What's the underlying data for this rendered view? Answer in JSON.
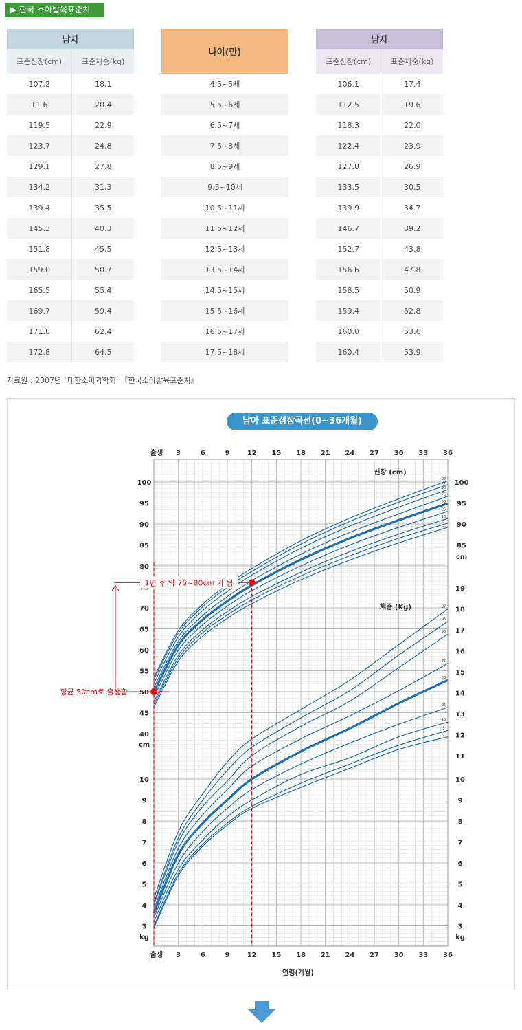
{
  "badge": "▶ 한국 소아발육표준치",
  "left_table": {
    "title": "남자",
    "col1": "표준신장(cm)",
    "col2": "표준체중(kg)",
    "rows": [
      [
        "107.2",
        "18.1"
      ],
      [
        "11.6",
        "20.4"
      ],
      [
        "119.5",
        "22.9"
      ],
      [
        "123.7",
        "24.8"
      ],
      [
        "129.1",
        "27.8"
      ],
      [
        "134.2",
        "31.3"
      ],
      [
        "139.4",
        "35.5"
      ],
      [
        "145.3",
        "40.3"
      ],
      [
        "151.8",
        "45.5"
      ],
      [
        "159.0",
        "50.7"
      ],
      [
        "165.5",
        "55.4"
      ],
      [
        "169.7",
        "59.4"
      ],
      [
        "171.8",
        "62.4"
      ],
      [
        "172.8",
        "64.5"
      ]
    ]
  },
  "mid_table": {
    "title": "나이(만)",
    "rows": [
      "4.5~5세",
      "5.5~6세",
      "6.5~7세",
      "7.5~8세",
      "8.5~9세",
      "9.5~10세",
      "10.5~11세",
      "11.5~12세",
      "12.5~13세",
      "13.5~14세",
      "14.5~15세",
      "15.5~16세",
      "16.5~17세",
      "17.5~18세"
    ]
  },
  "right_table": {
    "title": "남자",
    "col1": "표준신장(cm)",
    "col2": "표준체중(kg)",
    "rows": [
      [
        "106.1",
        "17.4"
      ],
      [
        "112.5",
        "19.6"
      ],
      [
        "118.3",
        "22.0"
      ],
      [
        "122.4",
        "23.9"
      ],
      [
        "127.8",
        "26.9"
      ],
      [
        "133.5",
        "30.5"
      ],
      [
        "139.9",
        "34.7"
      ],
      [
        "146.7",
        "39.2"
      ],
      [
        "152.7",
        "43.8"
      ],
      [
        "156.6",
        "47.8"
      ],
      [
        "158.5",
        "50.9"
      ],
      [
        "159.4",
        "52.8"
      ],
      [
        "160.0",
        "53.6"
      ],
      [
        "160.4",
        "53.9"
      ]
    ]
  },
  "source": "자료원 : 2007년 `대한소아과학회'   『한국소아발육표준치』",
  "chart_title": "남아 표준성장곡선(0~36개월)",
  "chart_data": {
    "type": "line",
    "title": "남아 표준성장곡선(0~36개월)",
    "xlabel": "연령(개월)",
    "x_ticks": [
      "출생",
      "3",
      "6",
      "9",
      "12",
      "15",
      "18",
      "21",
      "24",
      "27",
      "30",
      "33",
      "36"
    ],
    "height_panel": {
      "label": "신장 (cm)",
      "unit": "cm",
      "left_ticks": [
        "100",
        "95",
        "90",
        "85",
        "80",
        "75",
        "70",
        "65",
        "60",
        "55",
        "50",
        "45",
        "40"
      ],
      "right_ticks": [
        "100",
        "95",
        "90",
        "85"
      ],
      "ylim": [
        40,
        104
      ],
      "percentiles": [
        "97",
        "95",
        "90",
        "75",
        "50",
        "25",
        "10",
        "5",
        "3"
      ],
      "series": [
        {
          "name": "97",
          "x": [
            0,
            3,
            6,
            9,
            12,
            18,
            24,
            30,
            36
          ],
          "values": [
            53.4,
            64.6,
            70.9,
            75.5,
            79.4,
            86.0,
            91.4,
            96.0,
            100.3
          ]
        },
        {
          "name": "95",
          "x": [
            0,
            3,
            6,
            9,
            12,
            18,
            24,
            30,
            36
          ],
          "values": [
            52.9,
            64.0,
            70.3,
            74.9,
            78.7,
            85.2,
            90.6,
            95.2,
            99.4
          ]
        },
        {
          "name": "90",
          "x": [
            0,
            3,
            6,
            9,
            12,
            18,
            24,
            30,
            36
          ],
          "values": [
            52.0,
            63.1,
            69.4,
            73.9,
            77.8,
            84.2,
            89.5,
            94.0,
            98.2
          ]
        },
        {
          "name": "75",
          "x": [
            0,
            3,
            6,
            9,
            12,
            18,
            24,
            30,
            36
          ],
          "values": [
            51.0,
            62.0,
            68.2,
            72.7,
            76.5,
            82.8,
            88.0,
            92.4,
            96.6
          ]
        },
        {
          "name": "50",
          "x": [
            0,
            3,
            6,
            9,
            12,
            18,
            24,
            30,
            36
          ],
          "values": [
            49.9,
            61.1,
            67.2,
            71.6,
            75.4,
            81.5,
            86.6,
            90.9,
            94.9
          ]
        },
        {
          "name": "25",
          "x": [
            0,
            3,
            6,
            9,
            12,
            18,
            24,
            30,
            36
          ],
          "values": [
            48.7,
            59.9,
            66.0,
            70.4,
            74.1,
            80.0,
            85.0,
            89.2,
            93.0
          ]
        },
        {
          "name": "10",
          "x": [
            0,
            3,
            6,
            9,
            12,
            18,
            24,
            30,
            36
          ],
          "values": [
            47.6,
            58.7,
            64.8,
            69.1,
            72.7,
            78.5,
            83.4,
            87.6,
            91.3
          ]
        },
        {
          "name": "5",
          "x": [
            0,
            3,
            6,
            9,
            12,
            18,
            24,
            30,
            36
          ],
          "values": [
            47.0,
            58.0,
            64.1,
            68.3,
            71.9,
            77.6,
            82.4,
            86.6,
            90.2
          ]
        },
        {
          "name": "3",
          "x": [
            0,
            3,
            6,
            9,
            12,
            18,
            24,
            30,
            36
          ],
          "values": [
            46.3,
            57.3,
            63.3,
            67.5,
            71.0,
            76.7,
            81.4,
            85.5,
            89.2
          ]
        }
      ]
    },
    "weight_panel": {
      "label": "체중 (Kg)",
      "unit": "kg",
      "left_ticks": [
        "10",
        "9",
        "8",
        "7",
        "6",
        "5",
        "4",
        "3"
      ],
      "right_ticks": [
        "19",
        "18",
        "17",
        "16",
        "15",
        "14",
        "13",
        "12",
        "11",
        "10",
        "9",
        "8",
        "7",
        "6",
        "5",
        "4",
        "3"
      ],
      "ylim": [
        2.5,
        19.5
      ],
      "percentiles": [
        "97",
        "95",
        "90",
        "75",
        "50",
        "25",
        "10",
        "5",
        "3"
      ],
      "series": [
        {
          "name": "97",
          "x": [
            0,
            3,
            6,
            9,
            12,
            18,
            24,
            30,
            36
          ],
          "values": [
            4.3,
            7.5,
            9.3,
            10.7,
            11.8,
            13.2,
            14.6,
            16.3,
            18.0
          ]
        },
        {
          "name": "95",
          "x": [
            0,
            3,
            6,
            9,
            12,
            18,
            24,
            30,
            36
          ],
          "values": [
            4.1,
            7.2,
            9.0,
            10.3,
            11.4,
            12.8,
            14.1,
            15.8,
            17.4
          ]
        },
        {
          "name": "90",
          "x": [
            0,
            3,
            6,
            9,
            12,
            18,
            24,
            30,
            36
          ],
          "values": [
            4.0,
            7.0,
            8.7,
            9.9,
            11.0,
            12.4,
            13.6,
            15.2,
            16.8
          ]
        },
        {
          "name": "75",
          "x": [
            0,
            3,
            6,
            9,
            12,
            18,
            24,
            30,
            36
          ],
          "values": [
            3.8,
            6.7,
            8.3,
            9.5,
            10.5,
            11.8,
            12.9,
            14.1,
            15.4
          ]
        },
        {
          "name": "50",
          "x": [
            0,
            3,
            6,
            9,
            12,
            18,
            24,
            30,
            36
          ],
          "values": [
            3.6,
            6.4,
            7.9,
            9.0,
            10.0,
            11.2,
            12.3,
            13.5,
            14.6
          ]
        },
        {
          "name": "25",
          "x": [
            0,
            3,
            6,
            9,
            12,
            18,
            24,
            30,
            36
          ],
          "values": [
            3.4,
            6.0,
            7.5,
            8.6,
            9.5,
            10.6,
            11.6,
            12.5,
            13.3
          ]
        },
        {
          "name": "10",
          "x": [
            0,
            3,
            6,
            9,
            12,
            18,
            24,
            30,
            36
          ],
          "values": [
            3.2,
            5.7,
            7.1,
            8.2,
            9.0,
            10.1,
            10.9,
            11.9,
            12.6
          ]
        },
        {
          "name": "5",
          "x": [
            0,
            3,
            6,
            9,
            12,
            18,
            24,
            30,
            36
          ],
          "values": [
            3.0,
            5.5,
            6.9,
            7.9,
            8.7,
            9.8,
            10.6,
            11.5,
            12.2
          ]
        },
        {
          "name": "3",
          "x": [
            0,
            3,
            6,
            9,
            12,
            18,
            24,
            30,
            36
          ],
          "values": [
            2.9,
            5.4,
            6.8,
            7.8,
            8.6,
            9.6,
            10.4,
            11.3,
            11.9
          ]
        }
      ]
    },
    "annotations": [
      {
        "text": "평균 50cm로 출생함",
        "x": 0,
        "y": 50
      },
      {
        "text": "1년 후 약 75~80cm 가 됨",
        "x": 12,
        "y": 76
      }
    ],
    "colors": {
      "line": "#1c6fb3",
      "marker": "#e0101a",
      "grid": "#c8c8c8"
    }
  }
}
